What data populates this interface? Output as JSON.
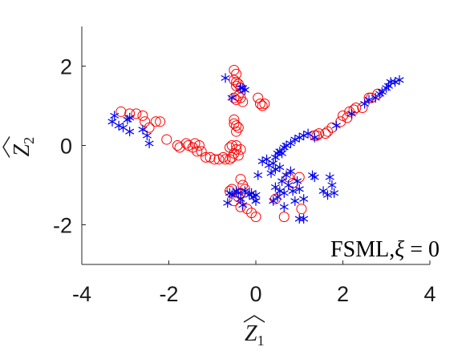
{
  "chart_data": {
    "type": "scatter",
    "xlabel": "Z",
    "xlabel_sub": "1",
    "ylabel": "Z",
    "ylabel_sub": "2",
    "xlim": [
      -4,
      4
    ],
    "ylim": [
      -3,
      3
    ],
    "xticks": [
      -4,
      -2,
      0,
      2,
      4
    ],
    "xtick_labels": [
      "-4",
      "-2",
      "0",
      "2",
      "4"
    ],
    "yticks": [
      -2,
      0,
      2
    ],
    "ytick_labels": [
      "-2",
      "0",
      "2"
    ],
    "grid": false,
    "annotation": {
      "prefix": "FSML,",
      "symbol": "ξ",
      "suffix": " = 0"
    },
    "series": [
      {
        "marker": "circle",
        "color": "#ff0000",
        "points": [
          [
            -3.1,
            0.85
          ],
          [
            -2.9,
            0.8
          ],
          [
            -2.75,
            0.8
          ],
          [
            -2.6,
            0.75
          ],
          [
            -2.55,
            0.6
          ],
          [
            -2.45,
            0.45
          ],
          [
            -2.3,
            0.6
          ],
          [
            -2.2,
            0.6
          ],
          [
            -2.05,
            0.15
          ],
          [
            -1.8,
            0.0
          ],
          [
            -1.75,
            -0.05
          ],
          [
            -1.6,
            0.05
          ],
          [
            -1.55,
            0.0
          ],
          [
            -1.45,
            -0.05
          ],
          [
            -1.4,
            0.05
          ],
          [
            -1.35,
            -0.15
          ],
          [
            -1.3,
            0.0
          ],
          [
            -1.25,
            -0.15
          ],
          [
            -1.15,
            -0.3
          ],
          [
            -1.05,
            -0.3
          ],
          [
            -0.95,
            -0.35
          ],
          [
            -0.85,
            -0.35
          ],
          [
            -0.75,
            -0.3
          ],
          [
            -0.7,
            -0.35
          ],
          [
            -0.6,
            -0.35
          ],
          [
            -0.55,
            -0.3
          ],
          [
            -0.5,
            -0.2
          ],
          [
            -0.45,
            -0.1
          ],
          [
            -0.4,
            -0.25
          ],
          [
            -0.35,
            -0.1
          ],
          [
            -0.45,
            0.0
          ],
          [
            -0.55,
            0.0
          ],
          [
            -0.6,
            -0.05
          ],
          [
            -0.5,
            0.55
          ],
          [
            -0.45,
            0.5
          ],
          [
            -0.5,
            0.65
          ],
          [
            -0.45,
            0.35
          ],
          [
            -0.4,
            0.45
          ],
          [
            -0.5,
            1.2
          ],
          [
            -0.45,
            1.15
          ],
          [
            -0.4,
            1.25
          ],
          [
            -0.35,
            1.2
          ],
          [
            -0.3,
            1.1
          ],
          [
            -0.5,
            1.65
          ],
          [
            -0.45,
            1.6
          ],
          [
            -0.45,
            1.5
          ],
          [
            -0.4,
            1.55
          ],
          [
            -0.35,
            1.45
          ],
          [
            -0.45,
            1.8
          ],
          [
            -0.5,
            1.9
          ],
          [
            0.05,
            1.2
          ],
          [
            0.1,
            1.05
          ],
          [
            0.15,
            1.0
          ],
          [
            0.2,
            1.05
          ],
          [
            -0.35,
            -0.85
          ],
          [
            -0.3,
            -1.0
          ],
          [
            -0.25,
            -1.1
          ],
          [
            -0.35,
            -1.2
          ],
          [
            -0.4,
            -1.3
          ],
          [
            -0.5,
            -1.4
          ],
          [
            -0.55,
            -1.1
          ],
          [
            -0.6,
            -1.15
          ],
          [
            -0.35,
            -1.55
          ],
          [
            -0.2,
            -1.6
          ],
          [
            -0.1,
            -1.7
          ],
          [
            0.0,
            -1.8
          ],
          [
            0.65,
            -1.8
          ],
          [
            1.05,
            -1.6
          ],
          [
            0.45,
            -1.35
          ],
          [
            0.75,
            -0.8
          ],
          [
            0.85,
            -0.95
          ],
          [
            1.0,
            -0.8
          ],
          [
            1.35,
            0.25
          ],
          [
            1.4,
            0.25
          ],
          [
            1.45,
            0.3
          ],
          [
            1.6,
            0.3
          ],
          [
            1.65,
            0.35
          ],
          [
            1.75,
            0.45
          ],
          [
            1.95,
            0.6
          ],
          [
            2.0,
            0.75
          ],
          [
            2.1,
            0.7
          ],
          [
            2.15,
            0.85
          ],
          [
            2.25,
            0.9
          ],
          [
            2.3,
            0.95
          ],
          [
            2.45,
            0.95
          ],
          [
            2.6,
            1.2
          ],
          [
            2.65,
            1.2
          ],
          [
            2.8,
            1.3
          ]
        ]
      },
      {
        "marker": "asterisk",
        "color": "#0000ee",
        "points": [
          [
            -3.3,
            0.6
          ],
          [
            -3.25,
            0.75
          ],
          [
            -3.15,
            0.5
          ],
          [
            -3.05,
            0.45
          ],
          [
            -2.95,
            0.65
          ],
          [
            -2.9,
            0.7
          ],
          [
            -2.9,
            0.35
          ],
          [
            -2.6,
            0.4
          ],
          [
            -2.5,
            0.25
          ],
          [
            -2.45,
            0.05
          ],
          [
            -0.7,
            1.7
          ],
          [
            -0.55,
            1.2
          ],
          [
            -0.35,
            1.45
          ],
          [
            -0.3,
            1.45
          ],
          [
            -0.25,
            1.4
          ],
          [
            0.05,
            -0.75
          ],
          [
            0.15,
            -0.4
          ],
          [
            0.25,
            -0.35
          ],
          [
            0.3,
            -0.5
          ],
          [
            0.4,
            -0.45
          ],
          [
            0.45,
            -0.3
          ],
          [
            0.5,
            -0.2
          ],
          [
            0.55,
            -0.15
          ],
          [
            0.6,
            -0.2
          ],
          [
            0.65,
            -0.05
          ],
          [
            0.7,
            0.0
          ],
          [
            0.8,
            0.05
          ],
          [
            0.9,
            0.15
          ],
          [
            1.0,
            0.2
          ],
          [
            1.1,
            0.25
          ],
          [
            1.2,
            0.3
          ],
          [
            1.35,
            0.2
          ],
          [
            0.35,
            -0.7
          ],
          [
            0.45,
            -0.6
          ],
          [
            0.55,
            -0.55
          ],
          [
            0.6,
            -0.9
          ],
          [
            0.7,
            -0.75
          ],
          [
            0.8,
            -0.65
          ],
          [
            0.45,
            -1.05
          ],
          [
            0.55,
            -1.15
          ],
          [
            0.65,
            -1.2
          ],
          [
            0.75,
            -1.0
          ],
          [
            0.85,
            -1.15
          ],
          [
            0.95,
            -0.9
          ],
          [
            1.0,
            -1.1
          ],
          [
            1.1,
            -1.35
          ],
          [
            0.9,
            -1.4
          ],
          [
            0.5,
            -1.3
          ],
          [
            0.4,
            -1.4
          ],
          [
            0.65,
            -1.55
          ],
          [
            1.3,
            -0.75
          ],
          [
            1.35,
            -0.8
          ],
          [
            1.55,
            -1.15
          ],
          [
            1.65,
            -1.25
          ],
          [
            1.75,
            -1.0
          ],
          [
            1.8,
            -1.2
          ],
          [
            1.7,
            -0.8
          ],
          [
            1.0,
            -1.85
          ],
          [
            1.1,
            -1.85
          ],
          [
            -0.6,
            -1.2
          ],
          [
            -0.55,
            -1.25
          ],
          [
            -0.45,
            -1.15
          ],
          [
            -0.4,
            -1.2
          ],
          [
            -0.65,
            -1.45
          ],
          [
            -0.35,
            -1.35
          ],
          [
            -0.25,
            -1.15
          ],
          [
            -0.15,
            -1.25
          ],
          [
            -0.05,
            -1.3
          ],
          [
            -0.1,
            -1.2
          ],
          [
            0.0,
            -1.25
          ],
          [
            0.0,
            -1.4
          ],
          [
            -0.3,
            -1.5
          ],
          [
            2.75,
            1.2
          ],
          [
            2.85,
            1.3
          ],
          [
            2.9,
            1.35
          ],
          [
            3.0,
            1.45
          ],
          [
            3.05,
            1.5
          ],
          [
            3.1,
            1.6
          ],
          [
            3.2,
            1.6
          ],
          [
            3.3,
            1.65
          ],
          [
            2.2,
            0.8
          ],
          [
            2.5,
            1.05
          ],
          [
            2.6,
            1.15
          ],
          [
            1.85,
            0.5
          ]
        ]
      }
    ]
  }
}
